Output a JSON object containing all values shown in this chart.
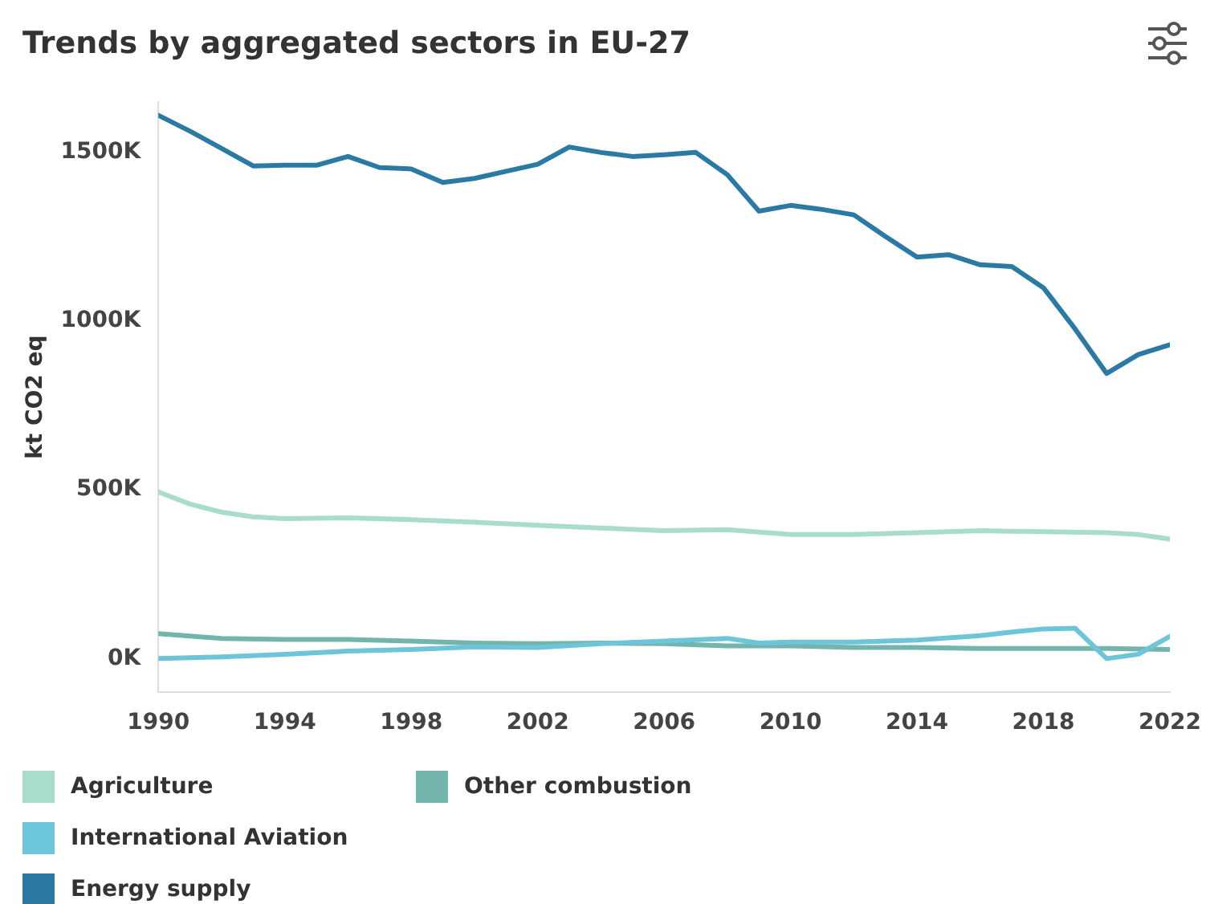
{
  "chart_data": {
    "type": "line",
    "title": "Trends by aggregated sectors in EU-27",
    "ylabel": "kt CO2 eq",
    "xlim": [
      1990,
      2022
    ],
    "xticks": [
      1990,
      1994,
      1998,
      2002,
      2006,
      2010,
      2014,
      2018,
      2022
    ],
    "ylim": [
      -100000,
      1650000
    ],
    "yticks": [
      {
        "value": 0,
        "label": "0K"
      },
      {
        "value": 500000,
        "label": "500K"
      },
      {
        "value": 1000000,
        "label": "1000K"
      },
      {
        "value": 1500000,
        "label": "1500K"
      }
    ],
    "grid": false,
    "legend": "bottom",
    "marker": "none",
    "line_style": "solid",
    "series": [
      {
        "name": "Agriculture",
        "color": "#a8dccb",
        "x": [
          1990,
          1991,
          1992,
          1993,
          1994,
          1996,
          1998,
          2000,
          2002,
          2004,
          2006,
          2008,
          2010,
          2012,
          2014,
          2016,
          2018,
          2020,
          2021,
          2022
        ],
        "values": [
          494000,
          458000,
          434000,
          420000,
          415000,
          417000,
          412000,
          404000,
          395000,
          387000,
          379000,
          382000,
          368000,
          368000,
          373000,
          379000,
          376000,
          373000,
          368000,
          354000
        ]
      },
      {
        "name": "International Aviation",
        "color": "#6cc5d9",
        "x": [
          1990,
          1992,
          1994,
          1996,
          1998,
          2000,
          2002,
          2004,
          2006,
          2008,
          2009,
          2010,
          2012,
          2014,
          2016,
          2017,
          2018,
          2019,
          2020,
          2021,
          2022
        ],
        "values": [
          0,
          5000,
          13000,
          22000,
          27000,
          35000,
          33000,
          44000,
          52000,
          60000,
          46000,
          49000,
          49000,
          55000,
          68000,
          79000,
          88000,
          90000,
          0,
          13000,
          66000
        ]
      },
      {
        "name": "Energy supply",
        "color": "#2a7aa3",
        "x": [
          1990,
          1991,
          1992,
          1993,
          1994,
          1995,
          1996,
          1997,
          1998,
          1999,
          2000,
          2001,
          2002,
          2003,
          2004,
          2005,
          2006,
          2007,
          2008,
          2009,
          2010,
          2011,
          2012,
          2013,
          2014,
          2015,
          2016,
          2017,
          2018,
          2019,
          2020,
          2021,
          2022
        ],
        "values": [
          1610000,
          1563000,
          1512000,
          1460000,
          1462000,
          1462000,
          1488000,
          1455000,
          1451000,
          1411000,
          1423000,
          1444000,
          1465000,
          1516000,
          1500000,
          1488000,
          1493000,
          1500000,
          1434000,
          1326000,
          1343000,
          1331000,
          1315000,
          1251000,
          1190000,
          1197000,
          1167000,
          1162000,
          1099000,
          977000,
          845000,
          901000,
          930000
        ]
      },
      {
        "name": "Other combustion",
        "color": "#73b5ad",
        "x": [
          1990,
          1992,
          1994,
          1996,
          1998,
          2000,
          2002,
          2004,
          2006,
          2008,
          2010,
          2012,
          2014,
          2016,
          2018,
          2020,
          2022
        ],
        "values": [
          74000,
          60000,
          57000,
          57000,
          52000,
          46000,
          44000,
          46000,
          44000,
          38000,
          38000,
          33000,
          33000,
          30000,
          30000,
          30000,
          27000
        ]
      }
    ]
  }
}
